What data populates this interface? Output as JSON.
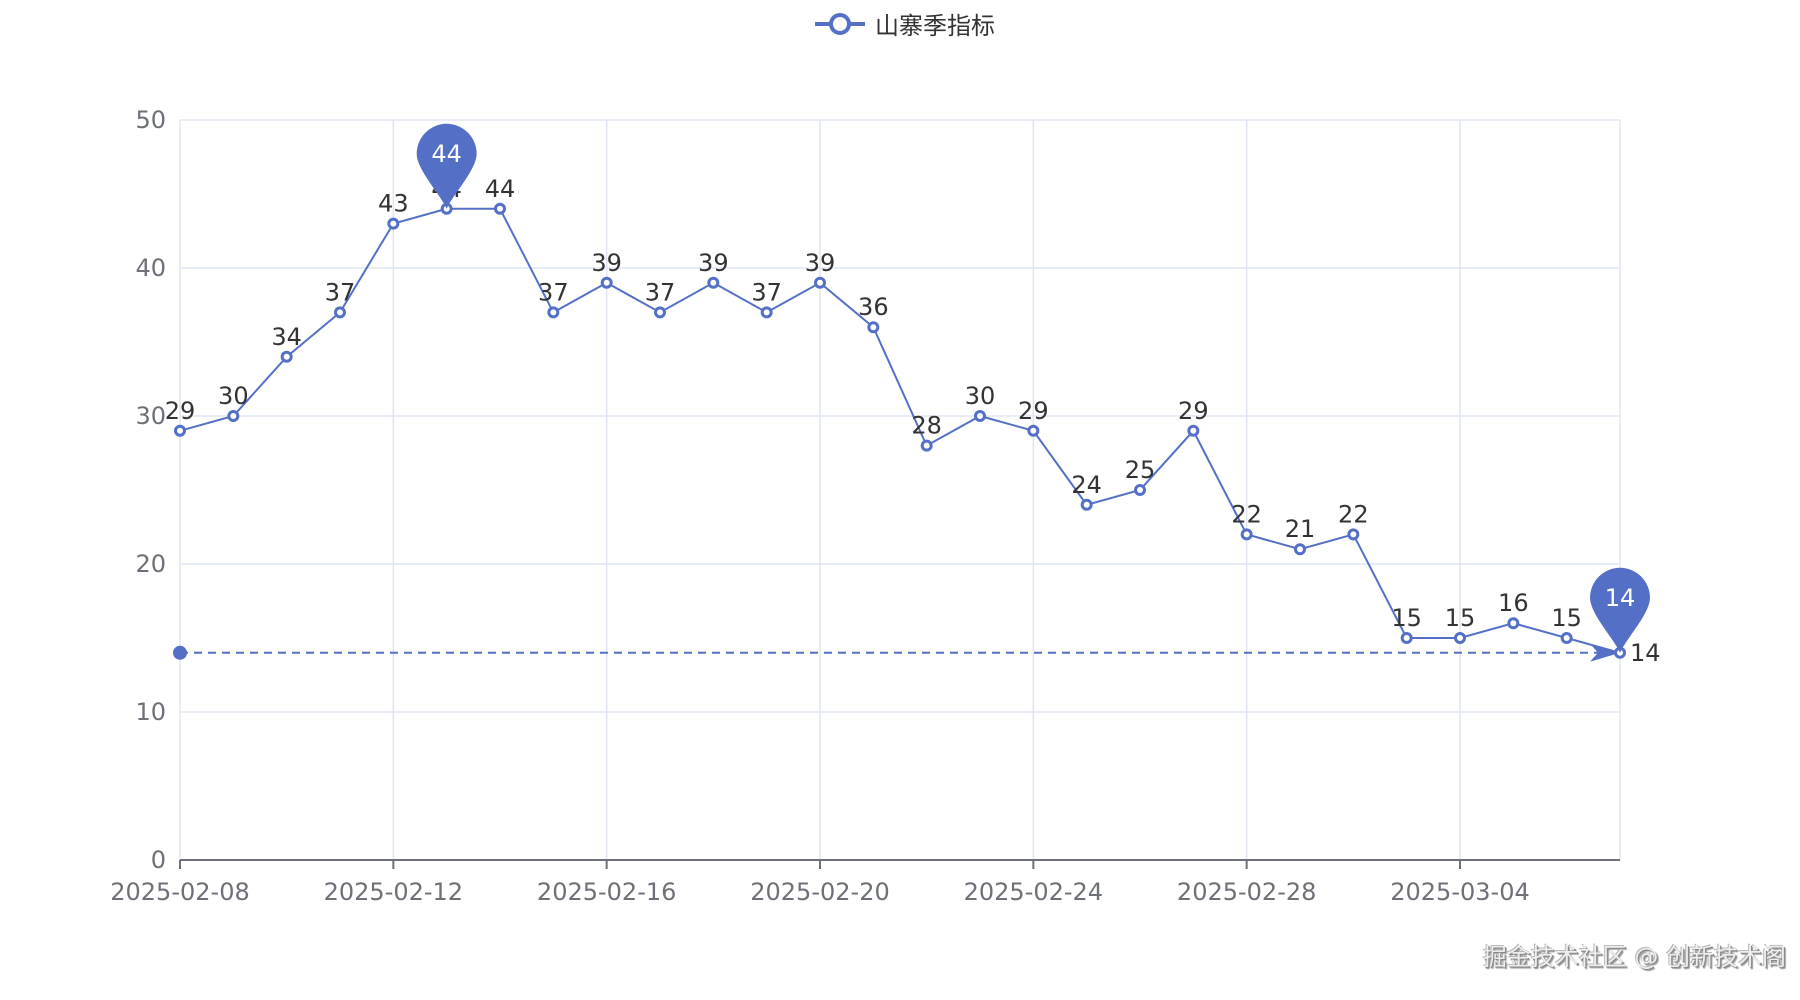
{
  "legend": {
    "label": "山寨季指标",
    "color": "#5470c6"
  },
  "watermark": "掘金技术社区 @ 创新技术阁",
  "chart_data": {
    "type": "line",
    "title": "",
    "xlabel": "",
    "ylabel": "",
    "ylim": [
      0,
      50
    ],
    "yticks": [
      0,
      10,
      20,
      30,
      40,
      50
    ],
    "xtick_labels": [
      "2025-02-08",
      "2025-02-12",
      "2025-02-16",
      "2025-02-20",
      "2025-02-24",
      "2025-02-28",
      "2025-03-04"
    ],
    "grid": true,
    "legend_position": "top-center",
    "x": [
      "2025-02-08",
      "2025-02-09",
      "2025-02-10",
      "2025-02-11",
      "2025-02-12",
      "2025-02-13",
      "2025-02-14",
      "2025-02-15",
      "2025-02-16",
      "2025-02-17",
      "2025-02-18",
      "2025-02-19",
      "2025-02-20",
      "2025-02-21",
      "2025-02-22",
      "2025-02-23",
      "2025-02-24",
      "2025-02-25",
      "2025-02-26",
      "2025-02-27",
      "2025-02-28",
      "2025-03-01",
      "2025-03-02",
      "2025-03-03",
      "2025-03-04",
      "2025-03-05",
      "2025-03-06",
      "2025-03-07"
    ],
    "series": [
      {
        "name": "山寨季指标",
        "color": "#5470c6",
        "values": [
          29,
          30,
          34,
          37,
          43,
          44,
          44,
          37,
          39,
          37,
          39,
          37,
          39,
          36,
          28,
          30,
          29,
          24,
          25,
          29,
          22,
          21,
          22,
          15,
          15,
          16,
          15,
          14
        ]
      }
    ],
    "mark_points": [
      {
        "type": "max",
        "value": 44,
        "x": "2025-02-13"
      },
      {
        "type": "min",
        "value": 14,
        "x": "2025-03-07"
      }
    ],
    "mark_lines": [
      {
        "type": "min",
        "value": 14,
        "label": "14",
        "style": "dashed"
      }
    ]
  }
}
